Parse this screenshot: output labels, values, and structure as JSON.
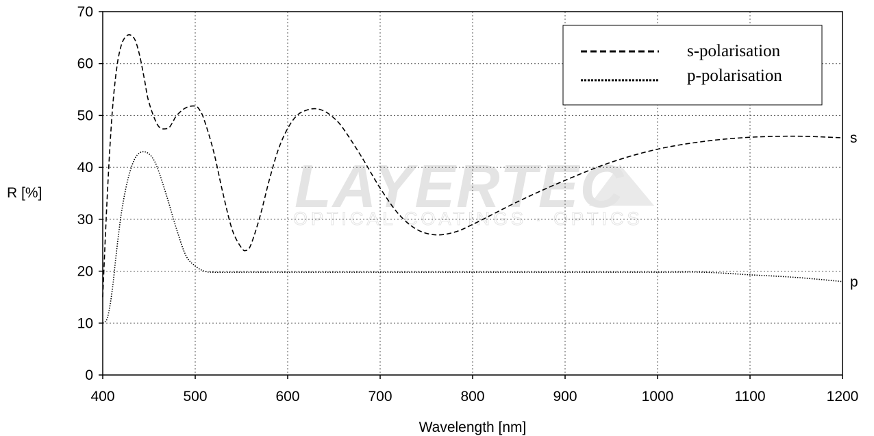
{
  "watermark": {
    "main": "LAYERTEC",
    "sub": "OPTICAL COATINGS · OPTICS"
  },
  "chart_data": {
    "type": "line",
    "xlabel": "Wavelength [nm]",
    "ylabel": "R [%]",
    "xlim": [
      400,
      1200
    ],
    "ylim": [
      0,
      70
    ],
    "xticks": [
      400,
      500,
      600,
      700,
      800,
      900,
      1000,
      1100,
      1200
    ],
    "yticks": [
      0,
      10,
      20,
      30,
      40,
      50,
      60,
      70
    ],
    "grid": true,
    "legend_position": "top-right",
    "series": [
      {
        "name": "s-polarisation",
        "end_label": "s",
        "style": "dashed",
        "color": "#000000",
        "x": [
          400,
          405,
          410,
          415,
          420,
          425,
          430,
          435,
          440,
          445,
          450,
          460,
          470,
          475,
          480,
          490,
          500,
          505,
          510,
          520,
          530,
          540,
          550,
          555,
          560,
          570,
          580,
          590,
          600,
          610,
          620,
          630,
          640,
          650,
          660,
          680,
          700,
          720,
          740,
          760,
          780,
          800,
          850,
          900,
          950,
          1000,
          1050,
          1100,
          1150,
          1200
        ],
        "y": [
          15,
          35,
          50,
          59,
          63.5,
          65.2,
          65.5,
          64.5,
          61.5,
          57,
          52.5,
          48,
          47.5,
          48.5,
          50,
          51.5,
          51.8,
          51,
          49,
          43,
          35,
          28,
          24.5,
          24,
          25,
          30.5,
          37.5,
          43.5,
          47.5,
          50,
          51,
          51.3,
          50.8,
          49.5,
          47.5,
          42,
          36,
          31,
          28,
          27,
          27.5,
          29,
          33.5,
          37.5,
          41,
          43.5,
          45,
          45.8,
          46,
          45.7
        ]
      },
      {
        "name": "p-polarisation",
        "end_label": "p",
        "style": "dotted",
        "color": "#000000",
        "x": [
          400,
          405,
          410,
          415,
          420,
          425,
          430,
          435,
          440,
          445,
          450,
          455,
          460,
          470,
          480,
          490,
          500,
          510,
          520,
          550,
          600,
          700,
          800,
          900,
          1000,
          1050,
          1100,
          1150,
          1200
        ],
        "y": [
          10,
          11,
          16,
          24,
          31,
          36,
          39.5,
          41.8,
          42.8,
          43,
          42.6,
          41.5,
          39.5,
          34,
          28,
          23,
          21,
          20,
          19.8,
          19.8,
          19.8,
          19.8,
          19.8,
          19.8,
          19.8,
          19.8,
          19.3,
          18.8,
          18
        ]
      }
    ]
  }
}
